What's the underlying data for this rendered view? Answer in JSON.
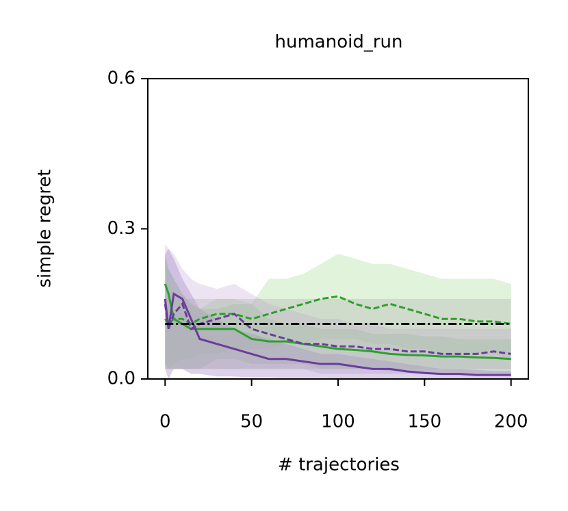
{
  "chart_data": {
    "type": "line",
    "title": "humanoid_run",
    "x_label": "# trajectories",
    "y_label": "simple regret",
    "xlim": [
      -10,
      210
    ],
    "ylim": [
      0,
      0.6
    ],
    "xticks": [
      0,
      50,
      100,
      150,
      200
    ],
    "yticks": [
      {
        "value": 0,
        "label": "0.0"
      },
      0.3,
      0.6
    ],
    "grid": false,
    "x": [
      0,
      2,
      5,
      10,
      15,
      20,
      30,
      40,
      50,
      60,
      70,
      80,
      90,
      100,
      110,
      120,
      130,
      140,
      150,
      160,
      170,
      180,
      190,
      200
    ],
    "series": [
      {
        "color": "#2ca02c",
        "band_color": "#a8dc98",
        "dash": "dashed",
        "values": [
          0.12,
          0.11,
          0.12,
          0.12,
          0.11,
          0.12,
          0.13,
          0.13,
          0.12,
          0.13,
          0.14,
          0.15,
          0.16,
          0.165,
          0.15,
          0.14,
          0.15,
          0.14,
          0.13,
          0.12,
          0.12,
          0.115,
          0.115,
          0.11
        ],
        "lower": [
          0.02,
          0.02,
          0.03,
          0.04,
          0.04,
          0.05,
          0.05,
          0.06,
          0.06,
          0.06,
          0.07,
          0.07,
          0.08,
          0.08,
          0.08,
          0.07,
          0.07,
          0.06,
          0.06,
          0.05,
          0.05,
          0.05,
          0.05,
          0.04
        ],
        "upper": [
          0.24,
          0.22,
          0.2,
          0.17,
          0.15,
          0.14,
          0.16,
          0.16,
          0.15,
          0.2,
          0.2,
          0.21,
          0.23,
          0.25,
          0.24,
          0.23,
          0.23,
          0.22,
          0.21,
          0.2,
          0.2,
          0.2,
          0.2,
          0.19
        ]
      },
      {
        "color": "#2ca02c",
        "band_color": "#7fcc6e",
        "dash": "solid",
        "values": [
          0.19,
          0.17,
          0.12,
          0.11,
          0.1,
          0.1,
          0.1,
          0.1,
          0.08,
          0.075,
          0.075,
          0.07,
          0.065,
          0.06,
          0.058,
          0.055,
          0.05,
          0.048,
          0.047,
          0.045,
          0.045,
          0.043,
          0.042,
          0.04
        ],
        "lower": [
          0.03,
          0.02,
          0.02,
          0.02,
          0.02,
          0.02,
          0.04,
          0.04,
          0.03,
          0.03,
          0.03,
          0.03,
          0.02,
          0.02,
          0.02,
          0.02,
          0.015,
          0.015,
          0.01,
          0.01,
          0.01,
          0.01,
          0.01,
          0.01
        ],
        "upper": [
          0.25,
          0.22,
          0.2,
          0.17,
          0.15,
          0.14,
          0.14,
          0.15,
          0.15,
          0.12,
          0.11,
          0.11,
          0.1,
          0.1,
          0.1,
          0.09,
          0.09,
          0.09,
          0.085,
          0.085,
          0.08,
          0.08,
          0.08,
          0.08
        ]
      },
      {
        "color": "#6a3d9a",
        "band_color": "#c9b3dd",
        "dash": "dashed",
        "values": [
          0.15,
          0.1,
          0.13,
          0.15,
          0.1,
          0.11,
          0.12,
          0.13,
          0.1,
          0.09,
          0.08,
          0.07,
          0.07,
          0.065,
          0.065,
          0.06,
          0.06,
          0.055,
          0.055,
          0.05,
          0.05,
          0.05,
          0.055,
          0.05
        ],
        "lower": [
          0.03,
          0.02,
          0.02,
          0.02,
          0.02,
          0.02,
          0.02,
          0.02,
          0.02,
          0.02,
          0.02,
          0.02,
          0.01,
          0.01,
          0.01,
          0.01,
          0.01,
          0.01,
          0.01,
          0.01,
          0.01,
          0.01,
          0.01,
          0.01
        ],
        "upper": [
          0.27,
          0.26,
          0.25,
          0.22,
          0.2,
          0.19,
          0.18,
          0.19,
          0.17,
          0.15,
          0.14,
          0.13,
          0.12,
          0.12,
          0.11,
          0.11,
          0.1,
          0.1,
          0.1,
          0.1,
          0.1,
          0.1,
          0.1,
          0.1
        ]
      },
      {
        "color": "#6a3d9a",
        "band_color": "#9e7fc4",
        "dash": "solid",
        "values": [
          0.16,
          0.1,
          0.17,
          0.16,
          0.12,
          0.08,
          0.07,
          0.06,
          0.05,
          0.04,
          0.04,
          0.035,
          0.03,
          0.03,
          0.025,
          0.02,
          0.02,
          0.015,
          0.012,
          0.01,
          0.01,
          0.008,
          0.008,
          0.008
        ],
        "lower": [
          0.02,
          0,
          0.02,
          0.02,
          0.01,
          0.01,
          0.005,
          0.005,
          0.003,
          0.003,
          0.002,
          0.002,
          0.002,
          0.001,
          0.001,
          0.001,
          0,
          0,
          0,
          0,
          0,
          0,
          0,
          0
        ],
        "upper": [
          0.25,
          0.26,
          0.24,
          0.2,
          0.17,
          0.14,
          0.12,
          0.1,
          0.09,
          0.08,
          0.07,
          0.06,
          0.05,
          0.05,
          0.045,
          0.04,
          0.035,
          0.03,
          0.025,
          0.02,
          0.02,
          0.018,
          0.016,
          0.016
        ]
      },
      {
        "color": "#000000",
        "band_color": "#b0b0b0",
        "dash": "dashdot",
        "values": [
          0.11,
          0.11,
          0.11,
          0.11,
          0.11,
          0.11,
          0.11,
          0.11,
          0.11,
          0.11,
          0.11,
          0.11,
          0.11,
          0.11,
          0.11,
          0.11,
          0.11,
          0.11,
          0.11,
          0.11,
          0.11,
          0.11,
          0.11,
          0.11
        ],
        "lower": [
          0.02,
          0.02,
          0.02,
          0.02,
          0.02,
          0.02,
          0.02,
          0.02,
          0.02,
          0.02,
          0.02,
          0.02,
          0.02,
          0.02,
          0.02,
          0.02,
          0.02,
          0.02,
          0.02,
          0.02,
          0.02,
          0.02,
          0.02,
          0.02
        ],
        "upper": [
          0.16,
          0.16,
          0.16,
          0.16,
          0.16,
          0.16,
          0.16,
          0.16,
          0.16,
          0.16,
          0.16,
          0.16,
          0.16,
          0.16,
          0.16,
          0.16,
          0.16,
          0.16,
          0.16,
          0.16,
          0.16,
          0.16,
          0.16,
          0.16
        ]
      }
    ]
  }
}
